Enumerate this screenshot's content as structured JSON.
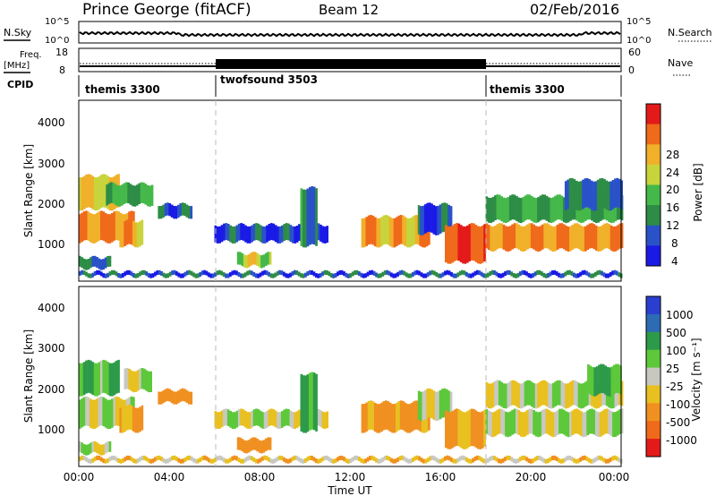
{
  "header": {
    "title": "Prince George (fitACF)",
    "beam": "Beam 12",
    "date": "02/Feb/2016"
  },
  "top_panels": {
    "nsky": {
      "label": "N.Sky",
      "ticks": [
        "10^5",
        "10^0"
      ]
    },
    "nsearch": {
      "label": "N.Search",
      "ticks": [
        "10^5",
        "10^0"
      ]
    },
    "freq": {
      "label_line1": "Freq.",
      "label_line2": "[MHz]",
      "ticks": [
        "18",
        "8"
      ]
    },
    "nave": {
      "label": "Nave",
      "ticks": [
        "60",
        "0"
      ]
    },
    "cpid": {
      "label": "CPID",
      "programs": [
        {
          "name": "themis 3300",
          "start": 0,
          "end": 6
        },
        {
          "name": "twofsound 3503",
          "start": 6,
          "end": 18
        },
        {
          "name": "themis 3300",
          "start": 18,
          "end": 24
        }
      ]
    }
  },
  "time_axis": {
    "title": "Time UT",
    "ticks": [
      "00:00",
      "04:00",
      "08:00",
      "12:00",
      "16:00",
      "20:00",
      "00:00"
    ],
    "range_hours": [
      0,
      24
    ]
  },
  "power_colorbar": {
    "title": "Power [dB]",
    "ticks": [
      "28",
      "24",
      "20",
      "16",
      "12",
      "8",
      "4"
    ]
  },
  "velocity_colorbar": {
    "title": "Velocity [m s⁻¹]",
    "ticks": [
      "1000",
      "500",
      "100",
      "25",
      "-25",
      "-100",
      "-500",
      "-1000"
    ]
  },
  "colors": {
    "power": [
      "#1a1ae6",
      "#2a52c8",
      "#2d8c46",
      "#45b84a",
      "#c8d43c",
      "#f0b02a",
      "#ef6a1a",
      "#e41a1a"
    ],
    "velocity": [
      "#2a3fd0",
      "#2d6bb5",
      "#2d9a4a",
      "#5cc83a",
      "#c8c8c0",
      "#e8c020",
      "#f09020",
      "#ef6a1a",
      "#e41a1a"
    ]
  },
  "chart_data": [
    {
      "type": "heatmap",
      "panel": "power",
      "ylabel": "Slant Range [km]",
      "yticks": [
        "4000",
        "3000",
        "2000",
        "1000"
      ],
      "ylim": [
        180,
        4600
      ],
      "xlim": [
        0,
        24
      ],
      "zlabel": "Power [dB]",
      "zlim": [
        0,
        32
      ],
      "patches": [
        {
          "t0": 0.0,
          "t1": 1.8,
          "r0": 1900,
          "r1": 2800,
          "z": 20
        },
        {
          "t0": 0.0,
          "t1": 2.4,
          "r0": 1100,
          "r1": 1900,
          "z": 24
        },
        {
          "t0": 1.8,
          "t1": 2.8,
          "r0": 1000,
          "r1": 1700,
          "z": 22
        },
        {
          "t0": 1.2,
          "t1": 3.2,
          "r0": 2000,
          "r1": 2600,
          "z": 12
        },
        {
          "t0": 0.0,
          "t1": 1.4,
          "r0": 450,
          "r1": 800,
          "z": 8
        },
        {
          "t0": 3.5,
          "t1": 5.0,
          "r0": 1700,
          "r1": 2100,
          "z": 6
        },
        {
          "t0": 6.0,
          "t1": 11.0,
          "r0": 1100,
          "r1": 1600,
          "z": 5
        },
        {
          "t0": 7.0,
          "t1": 8.5,
          "r0": 500,
          "r1": 900,
          "z": 18
        },
        {
          "t0": 9.8,
          "t1": 10.5,
          "r0": 1000,
          "r1": 2500,
          "z": 10
        },
        {
          "t0": 12.5,
          "t1": 15.5,
          "r0": 1000,
          "r1": 1800,
          "z": 22
        },
        {
          "t0": 15.0,
          "t1": 16.5,
          "r0": 1300,
          "r1": 2100,
          "z": 5
        },
        {
          "t0": 16.2,
          "t1": 18.0,
          "r0": 600,
          "r1": 1600,
          "z": 28
        },
        {
          "t0": 18.0,
          "t1": 24.0,
          "r0": 900,
          "r1": 1600,
          "z": 24
        },
        {
          "t0": 18.0,
          "t1": 24.0,
          "r0": 1600,
          "r1": 2300,
          "z": 12
        },
        {
          "t0": 21.5,
          "t1": 24.0,
          "r0": 1900,
          "r1": 2700,
          "z": 8
        },
        {
          "t0": 0.0,
          "t1": 24.0,
          "r0": 250,
          "r1": 450,
          "z": 6
        }
      ]
    },
    {
      "type": "heatmap",
      "panel": "velocity",
      "ylabel": "Slant Range [km]",
      "yticks": [
        "4000",
        "3000",
        "2000",
        "1000"
      ],
      "ylim": [
        180,
        4600
      ],
      "xlim": [
        0,
        24
      ],
      "zlabel": "Velocity [m s⁻¹]",
      "zlim": [
        -1000,
        1000
      ],
      "patches": [
        {
          "t0": 0.0,
          "t1": 1.8,
          "r0": 1900,
          "r1": 2800,
          "z": 80
        },
        {
          "t0": 0.0,
          "t1": 2.4,
          "r0": 1100,
          "r1": 1900,
          "z": 0
        },
        {
          "t0": 1.8,
          "t1": 2.8,
          "r0": 1000,
          "r1": 1700,
          "z": -120
        },
        {
          "t0": 2.0,
          "t1": 3.2,
          "r0": 2000,
          "r1": 2600,
          "z": 0
        },
        {
          "t0": 0.0,
          "t1": 1.4,
          "r0": 450,
          "r1": 800,
          "z": 0
        },
        {
          "t0": 3.5,
          "t1": 5.0,
          "r0": 1700,
          "r1": 2100,
          "z": -200
        },
        {
          "t0": 6.0,
          "t1": 11.0,
          "r0": 1100,
          "r1": 1600,
          "z": 0
        },
        {
          "t0": 7.0,
          "t1": 8.5,
          "r0": 500,
          "r1": 900,
          "z": -300
        },
        {
          "t0": 9.8,
          "t1": 10.5,
          "r0": 1000,
          "r1": 2500,
          "z": 150
        },
        {
          "t0": 12.5,
          "t1": 15.5,
          "r0": 1000,
          "r1": 1800,
          "z": -150
        },
        {
          "t0": 15.0,
          "t1": 16.5,
          "r0": 1300,
          "r1": 2100,
          "z": 0
        },
        {
          "t0": 16.2,
          "t1": 18.0,
          "r0": 600,
          "r1": 1600,
          "z": -100
        },
        {
          "t0": 18.0,
          "t1": 24.0,
          "r0": 900,
          "r1": 1600,
          "z": 0
        },
        {
          "t0": 18.0,
          "t1": 24.0,
          "r0": 1600,
          "r1": 2300,
          "z": 0
        },
        {
          "t0": 22.5,
          "t1": 24.0,
          "r0": 1900,
          "r1": 2700,
          "z": 120
        },
        {
          "t0": 0.0,
          "t1": 24.0,
          "r0": 250,
          "r1": 450,
          "z": -60
        }
      ]
    }
  ]
}
